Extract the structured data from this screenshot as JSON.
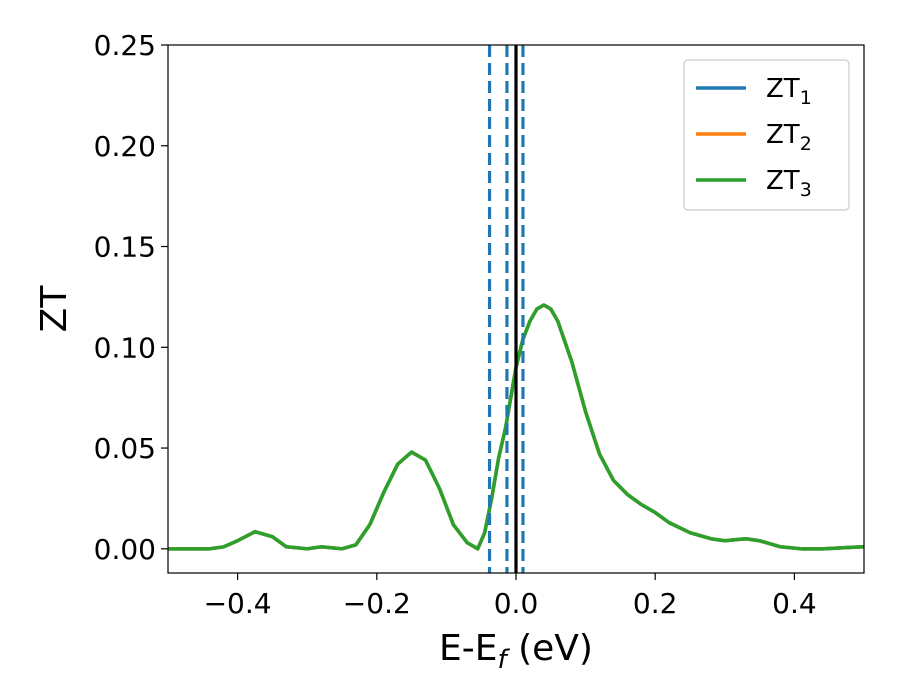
{
  "chart_data": {
    "type": "line",
    "xlabel": "E-E",
    "xlabel_sub": "f",
    "xlabel_unit": " (eV)",
    "ylabel": "ZT",
    "xlim": [
      -0.5,
      0.5
    ],
    "ylim": [
      -0.012,
      0.25
    ],
    "xticks": [
      -0.4,
      -0.2,
      0.0,
      0.2,
      0.4
    ],
    "xtick_labels": [
      "−0.4",
      "−0.2",
      "0.0",
      "0.2",
      "0.4"
    ],
    "yticks": [
      0.0,
      0.05,
      0.1,
      0.15,
      0.2,
      0.25
    ],
    "ytick_labels": [
      "0.00",
      "0.05",
      "0.10",
      "0.15",
      "0.20",
      "0.25"
    ],
    "grid": false,
    "legend_position": "top-right",
    "series": [
      {
        "name": "ZT",
        "name_sub": "1",
        "color": "#1f77b4",
        "x": [
          -0.5,
          -0.44,
          -0.42,
          -0.4,
          -0.375,
          -0.35,
          -0.33,
          -0.3,
          -0.28,
          -0.25,
          -0.23,
          -0.21,
          -0.19,
          -0.17,
          -0.15,
          -0.13,
          -0.11,
          -0.09,
          -0.07,
          -0.055,
          -0.045,
          -0.035,
          -0.025,
          -0.015,
          -0.005,
          0.0,
          0.01,
          0.02,
          0.03,
          0.04,
          0.05,
          0.06,
          0.08,
          0.1,
          0.12,
          0.14,
          0.16,
          0.18,
          0.2,
          0.22,
          0.25,
          0.28,
          0.3,
          0.33,
          0.35,
          0.38,
          0.41,
          0.44,
          0.47,
          0.5
        ],
        "y": [
          0.0,
          0.0,
          0.001,
          0.004,
          0.0085,
          0.006,
          0.001,
          0.0,
          0.001,
          0.0,
          0.002,
          0.012,
          0.028,
          0.042,
          0.048,
          0.044,
          0.03,
          0.012,
          0.003,
          0.0,
          0.008,
          0.025,
          0.045,
          0.06,
          0.08,
          0.09,
          0.104,
          0.113,
          0.119,
          0.121,
          0.119,
          0.113,
          0.093,
          0.068,
          0.047,
          0.034,
          0.027,
          0.022,
          0.018,
          0.013,
          0.008,
          0.005,
          0.004,
          0.005,
          0.004,
          0.001,
          0.0,
          0.0,
          0.0005,
          0.001
        ]
      },
      {
        "name": "ZT",
        "name_sub": "2",
        "color": "#ff7f0e",
        "x": [
          -0.5,
          -0.44,
          -0.42,
          -0.4,
          -0.375,
          -0.35,
          -0.33,
          -0.3,
          -0.28,
          -0.25,
          -0.23,
          -0.21,
          -0.19,
          -0.17,
          -0.15,
          -0.13,
          -0.11,
          -0.09,
          -0.07,
          -0.055,
          -0.045,
          -0.035,
          -0.025,
          -0.015,
          -0.005,
          0.0,
          0.01,
          0.02,
          0.03,
          0.04,
          0.05,
          0.06,
          0.08,
          0.1,
          0.12,
          0.14,
          0.16,
          0.18,
          0.2,
          0.22,
          0.25,
          0.28,
          0.3,
          0.33,
          0.35,
          0.38,
          0.41,
          0.44,
          0.47,
          0.5
        ],
        "y": [
          0.0,
          0.0,
          0.001,
          0.004,
          0.0085,
          0.006,
          0.001,
          0.0,
          0.001,
          0.0,
          0.002,
          0.012,
          0.028,
          0.042,
          0.048,
          0.044,
          0.03,
          0.012,
          0.003,
          0.0,
          0.008,
          0.025,
          0.045,
          0.06,
          0.08,
          0.09,
          0.104,
          0.113,
          0.119,
          0.121,
          0.119,
          0.113,
          0.093,
          0.068,
          0.047,
          0.034,
          0.027,
          0.022,
          0.018,
          0.013,
          0.008,
          0.005,
          0.004,
          0.005,
          0.004,
          0.001,
          0.0,
          0.0,
          0.0005,
          0.001
        ]
      },
      {
        "name": "ZT",
        "name_sub": "3",
        "color": "#2ca02c",
        "x": [
          -0.5,
          -0.44,
          -0.42,
          -0.4,
          -0.375,
          -0.35,
          -0.33,
          -0.3,
          -0.28,
          -0.25,
          -0.23,
          -0.21,
          -0.19,
          -0.17,
          -0.15,
          -0.13,
          -0.11,
          -0.09,
          -0.07,
          -0.055,
          -0.045,
          -0.035,
          -0.025,
          -0.015,
          -0.005,
          0.0,
          0.01,
          0.02,
          0.03,
          0.04,
          0.05,
          0.06,
          0.08,
          0.1,
          0.12,
          0.14,
          0.16,
          0.18,
          0.2,
          0.22,
          0.25,
          0.28,
          0.3,
          0.33,
          0.35,
          0.38,
          0.41,
          0.44,
          0.47,
          0.5
        ],
        "y": [
          0.0,
          0.0,
          0.001,
          0.004,
          0.0085,
          0.006,
          0.001,
          0.0,
          0.001,
          0.0,
          0.002,
          0.012,
          0.028,
          0.042,
          0.048,
          0.044,
          0.03,
          0.012,
          0.003,
          0.0,
          0.008,
          0.025,
          0.045,
          0.06,
          0.08,
          0.09,
          0.104,
          0.113,
          0.119,
          0.121,
          0.119,
          0.113,
          0.093,
          0.068,
          0.047,
          0.034,
          0.027,
          0.022,
          0.018,
          0.013,
          0.008,
          0.005,
          0.004,
          0.005,
          0.004,
          0.001,
          0.0,
          0.0,
          0.0005,
          0.001
        ]
      }
    ],
    "vertical_lines": [
      {
        "x": -0.038,
        "color": "#1f77b4",
        "style": "dashed"
      },
      {
        "x": -0.013,
        "color": "#1f77b4",
        "style": "dashed"
      },
      {
        "x": 0.01,
        "color": "#1f77b4",
        "style": "dashed"
      },
      {
        "x": 0.0,
        "color": "#000000",
        "style": "solid"
      }
    ]
  }
}
